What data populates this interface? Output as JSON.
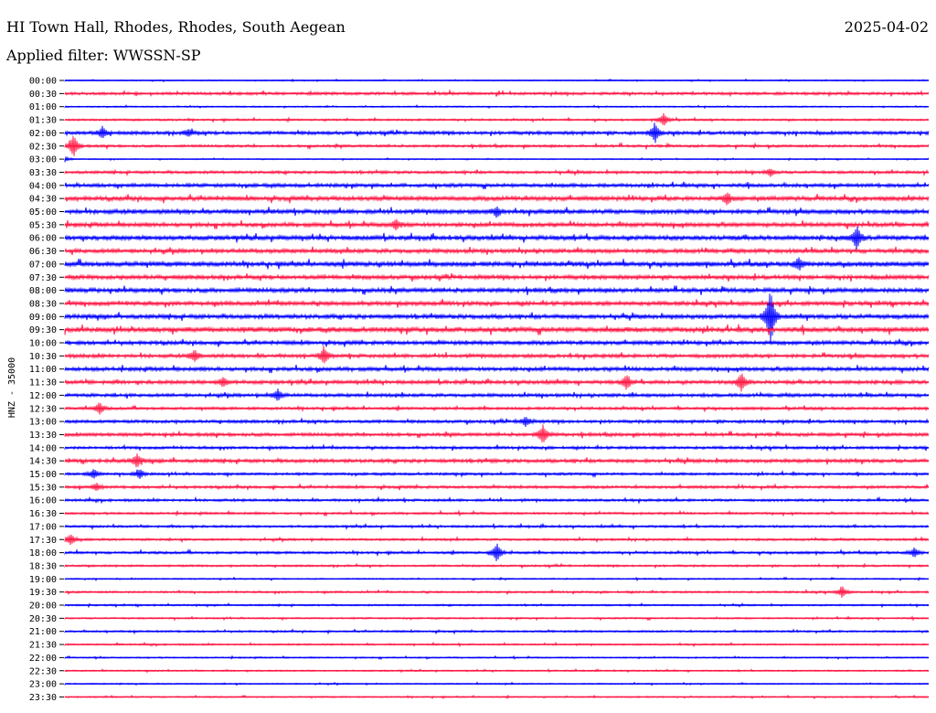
{
  "header": {
    "station": "HI Town Hall, Rhodes, Rhodes, South Aegean",
    "date": "2025-04-02",
    "filter": "Applied filter: WWSSN-SP"
  },
  "chart_data": {
    "type": "line",
    "title": "HI Town Hall, Rhodes, Rhodes, South Aegean",
    "ylabel": "HNZ - 35000",
    "colors": {
      "even_rows": "#0000ff",
      "odd_rows": "#ff1744",
      "axis": "#000000"
    },
    "grid": false,
    "rows": [
      "00:00",
      "00:30",
      "01:00",
      "01:30",
      "02:00",
      "02:30",
      "03:00",
      "03:30",
      "04:00",
      "04:30",
      "05:00",
      "05:30",
      "06:00",
      "06:30",
      "07:00",
      "07:30",
      "08:00",
      "08:30",
      "09:00",
      "09:30",
      "10:00",
      "10:30",
      "11:00",
      "11:30",
      "12:00",
      "12:30",
      "13:00",
      "13:30",
      "14:00",
      "14:30",
      "15:00",
      "15:30",
      "16:00",
      "16:30",
      "17:00",
      "17:30",
      "18:00",
      "18:30",
      "19:00",
      "19:30",
      "20:00",
      "20:30",
      "21:00",
      "21:30",
      "22:00",
      "22:30",
      "23:00",
      "23:30"
    ],
    "noise_levels": [
      0.4,
      1.0,
      0.5,
      0.7,
      1.2,
      0.9,
      0.4,
      1.0,
      1.3,
      1.6,
      1.6,
      1.5,
      1.7,
      1.5,
      1.8,
      1.5,
      1.6,
      1.5,
      1.6,
      1.9,
      1.4,
      1.3,
      1.4,
      1.3,
      1.2,
      1.0,
      1.1,
      1.2,
      1.0,
      1.3,
      0.9,
      1.0,
      0.9,
      0.8,
      0.8,
      0.8,
      0.9,
      0.7,
      0.5,
      0.7,
      0.6,
      0.6,
      0.7,
      0.6,
      0.5,
      0.5,
      0.5,
      0.5
    ],
    "events": [
      {
        "row": 4,
        "minute": 1.3,
        "amplitude": 6
      },
      {
        "row": 4,
        "minute": 4.3,
        "amplitude": 4
      },
      {
        "row": 4,
        "minute": 20.5,
        "amplitude": 10
      },
      {
        "row": 3,
        "minute": 20.8,
        "amplitude": 7
      },
      {
        "row": 5,
        "minute": 0.3,
        "amplitude": 12
      },
      {
        "row": 6,
        "minute": 0.0,
        "amplitude": 3
      },
      {
        "row": 7,
        "minute": 24.5,
        "amplitude": 4
      },
      {
        "row": 9,
        "minute": 23.0,
        "amplitude": 6
      },
      {
        "row": 10,
        "minute": 15.0,
        "amplitude": 5
      },
      {
        "row": 11,
        "minute": 11.5,
        "amplitude": 5
      },
      {
        "row": 12,
        "minute": 27.5,
        "amplitude": 12
      },
      {
        "row": 14,
        "minute": 25.5,
        "amplitude": 6
      },
      {
        "row": 18,
        "minute": 24.5,
        "amplitude": 30
      },
      {
        "row": 21,
        "minute": 4.5,
        "amplitude": 6
      },
      {
        "row": 21,
        "minute": 9.0,
        "amplitude": 8
      },
      {
        "row": 23,
        "minute": 5.5,
        "amplitude": 5
      },
      {
        "row": 23,
        "minute": 19.5,
        "amplitude": 7
      },
      {
        "row": 23,
        "minute": 23.5,
        "amplitude": 10
      },
      {
        "row": 24,
        "minute": 7.4,
        "amplitude": 6
      },
      {
        "row": 25,
        "minute": 1.2,
        "amplitude": 6
      },
      {
        "row": 26,
        "minute": 16.0,
        "amplitude": 5
      },
      {
        "row": 27,
        "minute": 16.6,
        "amplitude": 10
      },
      {
        "row": 29,
        "minute": 2.5,
        "amplitude": 7
      },
      {
        "row": 30,
        "minute": 1.0,
        "amplitude": 5
      },
      {
        "row": 30,
        "minute": 2.6,
        "amplitude": 5
      },
      {
        "row": 31,
        "minute": 1.1,
        "amplitude": 4
      },
      {
        "row": 35,
        "minute": 0.2,
        "amplitude": 6
      },
      {
        "row": 36,
        "minute": 15.0,
        "amplitude": 10
      },
      {
        "row": 36,
        "minute": 29.5,
        "amplitude": 5
      },
      {
        "row": 39,
        "minute": 27.0,
        "amplitude": 6
      }
    ]
  }
}
